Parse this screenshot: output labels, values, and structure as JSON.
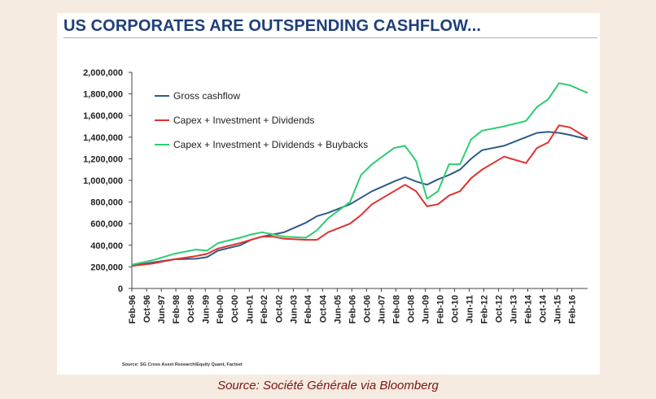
{
  "caption": "Source: Société Générale via Bloomberg",
  "source_note": "Source: SG Cross Asset Research/Equity Quant, Factset",
  "chart_data": {
    "type": "line",
    "title": "US CORPORATES ARE OUTSPENDING CASHFLOW...",
    "xlabel": "",
    "ylabel": "",
    "ylim": [
      0,
      2000000
    ],
    "yticks": [
      0,
      200000,
      400000,
      600000,
      800000,
      1000000,
      1200000,
      1400000,
      1600000,
      1800000,
      2000000
    ],
    "ytick_labels": [
      "0",
      "200,000",
      "400,000",
      "600,000",
      "800,000",
      "1,000,000",
      "1,200,000",
      "1,400,000",
      "1,600,000",
      "1,800,000",
      "2,000,000"
    ],
    "x_range": [
      1996.08,
      2016.8
    ],
    "x": [
      1996.08,
      1997.0,
      1998.0,
      1999.0,
      1999.5,
      2000.0,
      2001.0,
      2001.5,
      2002.0,
      2002.5,
      2003.0,
      2004.0,
      2004.5,
      2005.0,
      2006.0,
      2006.5,
      2007.0,
      2008.0,
      2008.5,
      2009.0,
      2009.5,
      2010.0,
      2010.5,
      2011.0,
      2011.5,
      2012.0,
      2013.0,
      2014.0,
      2014.5,
      2015.0,
      2015.5,
      2016.0,
      2016.8
    ],
    "xticks": [
      1996.08,
      1996.75,
      1997.42,
      1998.08,
      1998.75,
      1999.42,
      2000.08,
      2000.75,
      2001.42,
      2002.08,
      2002.75,
      2003.42,
      2004.08,
      2004.75,
      2005.42,
      2006.08,
      2006.75,
      2007.42,
      2008.08,
      2008.75,
      2009.42,
      2010.08,
      2010.75,
      2011.42,
      2012.08,
      2012.75,
      2013.42,
      2014.08,
      2014.75,
      2015.42,
      2016.08
    ],
    "xtick_labels": [
      "Feb-96",
      "Oct-96",
      "Jun-97",
      "Feb-98",
      "Oct-98",
      "Jun-99",
      "Feb-00",
      "Oct-00",
      "Jun-01",
      "Feb-02",
      "Oct-02",
      "Jun-03",
      "Feb-04",
      "Oct-04",
      "Jun-05",
      "Feb-06",
      "Oct-06",
      "Jun-07",
      "Feb-08",
      "Oct-08",
      "Jun-09",
      "Feb-10",
      "Oct-10",
      "Jun-11",
      "Feb-12",
      "Oct-12",
      "Jun-13",
      "Feb-14",
      "Oct-14",
      "Jun-15",
      "Feb-16"
    ],
    "grid": false,
    "legend_position": "top-left",
    "series": [
      {
        "name": "Gross cashflow",
        "color": "#2e5a8a",
        "values": [
          210000,
          240000,
          270000,
          275000,
          290000,
          350000,
          400000,
          450000,
          480000,
          500000,
          520000,
          610000,
          670000,
          700000,
          780000,
          840000,
          900000,
          990000,
          1030000,
          990000,
          960000,
          1010000,
          1050000,
          1100000,
          1200000,
          1280000,
          1320000,
          1400000,
          1440000,
          1450000,
          1440000,
          1420000,
          1380000
        ]
      },
      {
        "name": "Capex + Investment + Dividends",
        "color": "#e03030",
        "values": [
          210000,
          230000,
          270000,
          300000,
          320000,
          370000,
          420000,
          450000,
          480000,
          480000,
          460000,
          450000,
          450000,
          520000,
          600000,
          680000,
          780000,
          900000,
          960000,
          900000,
          760000,
          780000,
          860000,
          900000,
          1020000,
          1100000,
          1220000,
          1160000,
          1300000,
          1350000,
          1510000,
          1490000,
          1390000
        ]
      },
      {
        "name": "Capex + Investment + Dividends + Buybacks",
        "color": "#2ecc71",
        "values": [
          220000,
          260000,
          320000,
          360000,
          350000,
          420000,
          470000,
          500000,
          520000,
          500000,
          480000,
          470000,
          540000,
          650000,
          800000,
          1050000,
          1150000,
          1300000,
          1320000,
          1180000,
          830000,
          900000,
          1150000,
          1150000,
          1380000,
          1460000,
          1500000,
          1550000,
          1680000,
          1750000,
          1900000,
          1880000,
          1810000
        ]
      }
    ]
  }
}
